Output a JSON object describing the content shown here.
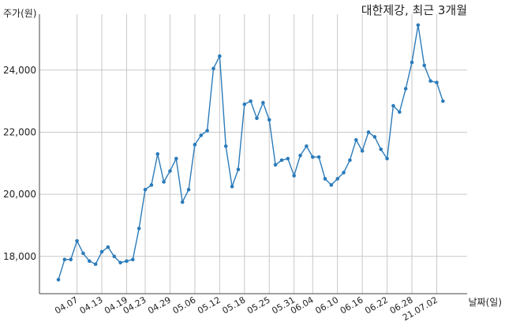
{
  "chart_data": {
    "type": "line",
    "title": "대한제강, 최근 3개월",
    "ylabel": "주가(원)",
    "xlabel": "날짜(일)",
    "ylim": [
      16800,
      25800
    ],
    "yticks": [
      18000,
      20000,
      22000,
      24000
    ],
    "ytick_labels": [
      "18,000",
      "20,000",
      "22,000",
      "24,000"
    ],
    "grid": true,
    "color": "#2b7bba",
    "xtick_labels": [
      "04.07",
      "04.13",
      "04.19",
      "04.23",
      "04.29",
      "05.06",
      "05.12",
      "05.18",
      "05.25",
      "05.31",
      "06.04",
      "06.10",
      "06.16",
      "06.22",
      "06.28",
      "21.07.02"
    ],
    "xtick_index": [
      3,
      7,
      11,
      14,
      18,
      22,
      26,
      30,
      34,
      38,
      41,
      45,
      49,
      53,
      57,
      61
    ],
    "series": [
      {
        "values": [
          17250,
          17900,
          17900,
          18500,
          18100,
          17850,
          17750,
          18150,
          18300,
          18000,
          17800,
          17850,
          17900,
          18900,
          20150,
          20300,
          21300,
          20400,
          20750,
          21150,
          19750,
          20150,
          21600,
          21900,
          22050,
          24050,
          24450,
          21550,
          20250,
          20800,
          22900,
          23000,
          22450,
          22950,
          22400,
          20950,
          21100,
          21150,
          20600,
          21250,
          21550,
          21200,
          21200,
          20500,
          20300,
          20500,
          20700,
          21100,
          21750,
          21400,
          22000,
          21850,
          21450,
          21150,
          22850,
          22650,
          23400,
          24250,
          25450,
          24150,
          23650,
          23600,
          23000
        ]
      }
    ]
  }
}
